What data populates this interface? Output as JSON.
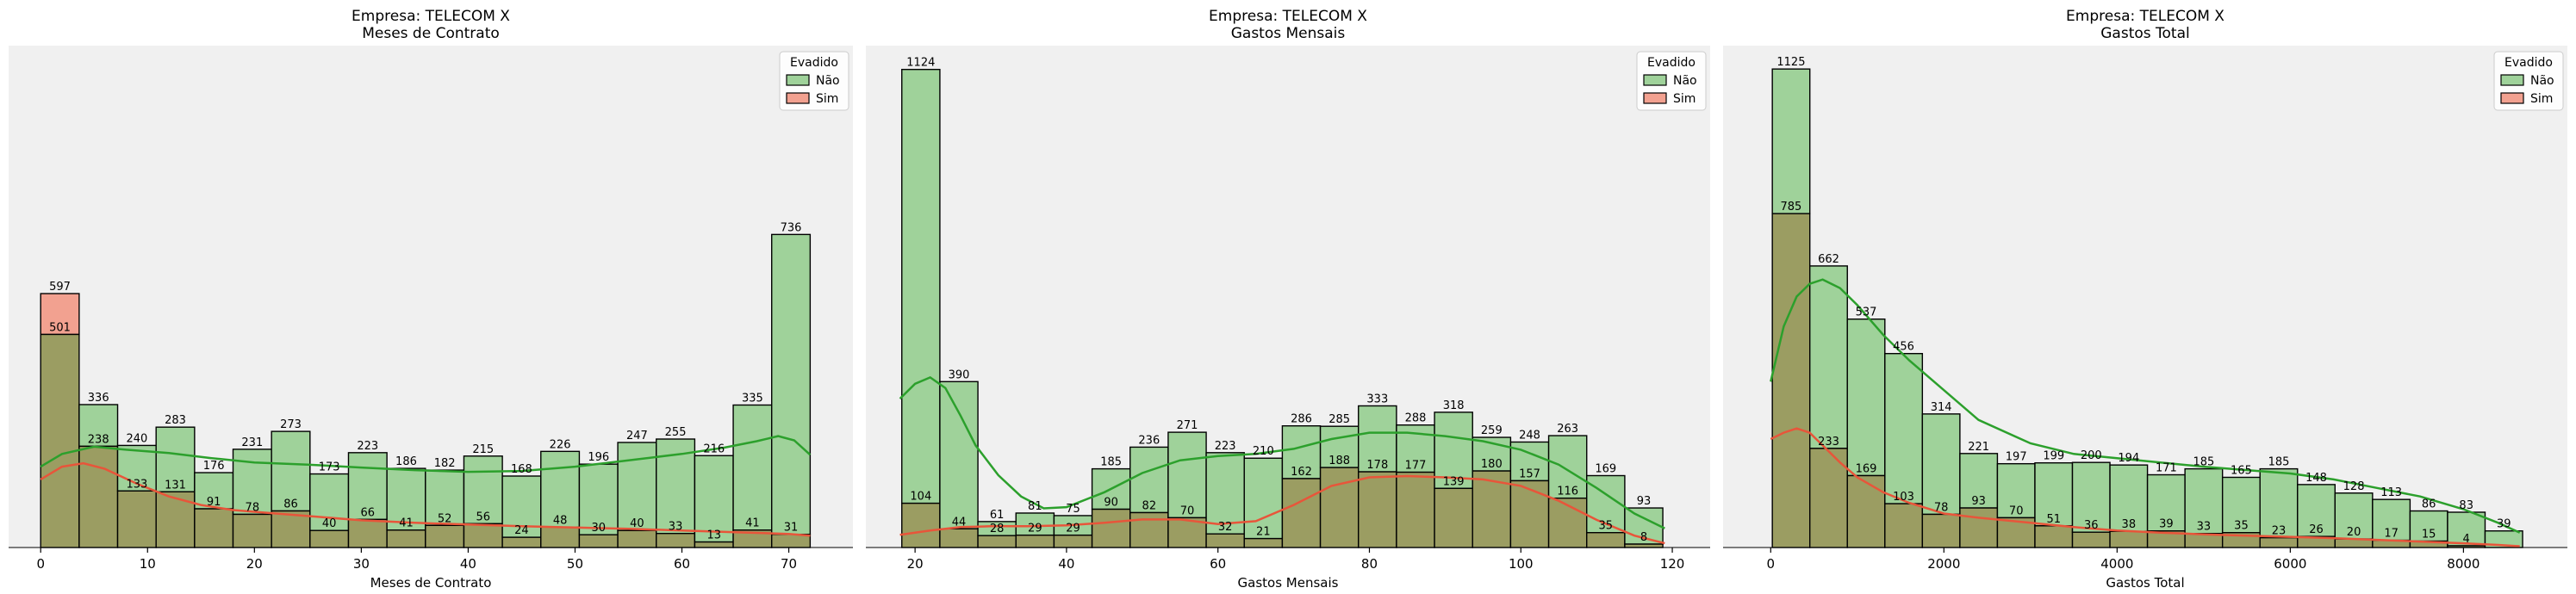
{
  "colors": {
    "nao": "#2ca02c",
    "nao_fill": "#9fd29a",
    "sim": "#e8553a",
    "sim_fill": "#f2a190",
    "overlap_fill": "#9b9d62",
    "panel_bg": "#f0f0f0"
  },
  "chart_data": [
    {
      "type": "bar",
      "title": "Empresa: TELECOM X",
      "subtitle": "Meses de Contrato",
      "xlabel": "Meses de Contrato",
      "ylabel": "",
      "xlim": [
        -3,
        76
      ],
      "ylim": [
        0,
        1180
      ],
      "xticks": [
        "0",
        "10",
        "20",
        "30",
        "40",
        "50",
        "60",
        "70"
      ],
      "xtick_values": [
        0,
        10,
        20,
        30,
        40,
        50,
        60,
        70
      ],
      "bin_start": 0,
      "bin_width": 3.6,
      "legend": {
        "title": "Evadido",
        "position": "top-right",
        "entries": [
          "Não",
          "Sim"
        ]
      },
      "series": [
        {
          "name": "Não",
          "values": [
            501,
            336,
            240,
            283,
            176,
            231,
            273,
            173,
            223,
            186,
            182,
            215,
            168,
            226,
            196,
            247,
            255,
            216,
            335,
            736
          ],
          "labels": [
            "501",
            "336",
            "240",
            "283",
            "176",
            "231",
            "273",
            "173",
            "223",
            "186",
            "182",
            "215",
            "168",
            "226",
            "196",
            "247",
            "255",
            "216",
            "335",
            "736"
          ]
        },
        {
          "name": "Sim",
          "values": [
            597,
            238,
            133,
            131,
            91,
            78,
            86,
            40,
            66,
            41,
            52,
            56,
            24,
            48,
            30,
            40,
            33,
            13,
            41,
            31
          ],
          "labels": [
            "597",
            "238",
            "133",
            "131",
            "91",
            "78",
            "86",
            "40",
            "66",
            "41",
            "52",
            "56",
            "24",
            "48",
            "30",
            "40",
            "33",
            "13",
            "41",
            "31"
          ]
        }
      ],
      "kde": [
        {
          "name": "Não",
          "x": [
            0,
            2,
            5,
            8,
            12,
            16,
            20,
            25,
            30,
            35,
            40,
            45,
            50,
            55,
            60,
            64,
            67,
            69,
            70.5,
            72
          ],
          "y": [
            190,
            220,
            237,
            230,
            222,
            210,
            200,
            195,
            188,
            182,
            178,
            180,
            190,
            205,
            220,
            235,
            250,
            262,
            252,
            218
          ]
        },
        {
          "name": "Sim",
          "x": [
            0,
            2,
            4,
            6,
            9,
            12,
            15,
            18,
            22,
            26,
            30,
            35,
            40,
            45,
            50,
            55,
            60,
            65,
            70,
            72
          ],
          "y": [
            160,
            190,
            198,
            185,
            150,
            120,
            100,
            88,
            80,
            72,
            64,
            58,
            54,
            50,
            47,
            44,
            40,
            36,
            32,
            28
          ]
        }
      ]
    },
    {
      "type": "bar",
      "title": "Empresa: TELECOM X",
      "subtitle": "Gastos Mensais",
      "xlabel": "Gastos Mensais",
      "ylabel": "",
      "xlim": [
        13.5,
        125
      ],
      "ylim": [
        0,
        1180
      ],
      "xticks": [
        "20",
        "40",
        "60",
        "80",
        "100",
        "120"
      ],
      "xtick_values": [
        20,
        40,
        60,
        80,
        100,
        120
      ],
      "bin_start": 18.25,
      "bin_width": 5.025,
      "legend": {
        "title": "Evadido",
        "position": "top-right",
        "entries": [
          "Não",
          "Sim"
        ]
      },
      "series": [
        {
          "name": "Não",
          "values": [
            1124,
            390,
            61,
            81,
            75,
            185,
            236,
            271,
            223,
            210,
            286,
            285,
            333,
            288,
            318,
            259,
            248,
            263,
            169,
            93
          ],
          "labels": [
            "1124",
            "390",
            "61",
            "81",
            "75",
            "185",
            "236",
            "271",
            "223",
            "210",
            "286",
            "285",
            "333",
            "288",
            "318",
            "259",
            "248",
            "263",
            "169",
            "93"
          ]
        },
        {
          "name": "Sim",
          "values": [
            104,
            44,
            28,
            29,
            29,
            90,
            82,
            70,
            32,
            21,
            162,
            188,
            178,
            177,
            139,
            180,
            157,
            116,
            35,
            8
          ],
          "labels": [
            "104",
            "44",
            "28",
            "29",
            "29",
            "90",
            "82",
            "70",
            "32",
            "21",
            "162",
            "188",
            "178",
            "177",
            "139",
            "180",
            "157",
            "116",
            "35",
            "8"
          ]
        }
      ],
      "kde": [
        {
          "name": "Não",
          "x": [
            18,
            20,
            22,
            24,
            26,
            28,
            31,
            34,
            37,
            40,
            45,
            50,
            55,
            60,
            65,
            70,
            75,
            80,
            85,
            90,
            95,
            100,
            105,
            110,
            115,
            119
          ],
          "y": [
            350,
            385,
            400,
            375,
            310,
            240,
            170,
            120,
            92,
            95,
            130,
            175,
            205,
            215,
            220,
            232,
            255,
            270,
            270,
            262,
            250,
            230,
            195,
            140,
            80,
            45
          ]
        },
        {
          "name": "Sim",
          "x": [
            18,
            22,
            26,
            30,
            35,
            40,
            45,
            50,
            55,
            60,
            65,
            70,
            75,
            80,
            85,
            90,
            95,
            100,
            105,
            110,
            115,
            119
          ],
          "y": [
            30,
            40,
            48,
            50,
            50,
            52,
            58,
            66,
            66,
            55,
            62,
            100,
            145,
            165,
            168,
            165,
            160,
            145,
            110,
            65,
            28,
            10
          ]
        }
      ]
    },
    {
      "type": "bar",
      "title": "Empresa: TELECOM X",
      "subtitle": "Gastos Total",
      "xlabel": "Gastos Total",
      "ylabel": "",
      "xlim": [
        -550,
        9200
      ],
      "ylim": [
        0,
        1180
      ],
      "xticks": [
        "0",
        "2000",
        "4000",
        "6000",
        "8000"
      ],
      "xtick_values": [
        0,
        2000,
        4000,
        6000,
        8000
      ],
      "bin_start": 18.8,
      "bin_width": 433.2,
      "legend": {
        "title": "Evadido",
        "position": "top-right",
        "entries": [
          "Não",
          "Sim"
        ]
      },
      "series": [
        {
          "name": "Não",
          "values": [
            1125,
            662,
            537,
            456,
            314,
            221,
            197,
            199,
            200,
            194,
            171,
            185,
            165,
            185,
            148,
            128,
            113,
            86,
            83,
            39
          ],
          "labels": [
            "1125",
            "662",
            "537",
            "456",
            "314",
            "221",
            "197",
            "199",
            "200",
            "194",
            "171",
            "185",
            "165",
            "185",
            "148",
            "128",
            "113",
            "86",
            "83",
            "39"
          ]
        },
        {
          "name": "Sim",
          "values": [
            785,
            233,
            169,
            103,
            78,
            93,
            70,
            51,
            36,
            38,
            39,
            33,
            35,
            23,
            26,
            20,
            17,
            15,
            4,
            0
          ],
          "labels": [
            "785",
            "233",
            "169",
            "103",
            "78",
            "93",
            "70",
            "51",
            "36",
            "38",
            "39",
            "33",
            "35",
            "23",
            "26",
            "20",
            "17",
            "15",
            "4",
            ""
          ]
        }
      ],
      "kde": [
        {
          "name": "Não",
          "x": [
            0,
            150,
            300,
            450,
            600,
            800,
            1000,
            1300,
            1600,
            2000,
            2400,
            3000,
            3500,
            4000,
            4500,
            5000,
            5500,
            6000,
            6500,
            7000,
            7500,
            8000,
            8400,
            8650
          ],
          "y": [
            390,
            520,
            590,
            620,
            630,
            610,
            570,
            500,
            440,
            370,
            300,
            245,
            220,
            210,
            200,
            190,
            182,
            174,
            160,
            140,
            120,
            90,
            58,
            35
          ]
        },
        {
          "name": "Sim",
          "x": [
            0,
            150,
            300,
            450,
            600,
            800,
            1000,
            1300,
            1600,
            2000,
            2400,
            3000,
            3500,
            4000,
            4500,
            5000,
            5500,
            6000,
            6500,
            7000,
            7500,
            8000,
            8400,
            8650
          ],
          "y": [
            255,
            270,
            280,
            270,
            240,
            200,
            165,
            130,
            105,
            80,
            70,
            58,
            48,
            40,
            35,
            31,
            28,
            25,
            22,
            18,
            14,
            10,
            6,
            3
          ]
        }
      ]
    }
  ]
}
